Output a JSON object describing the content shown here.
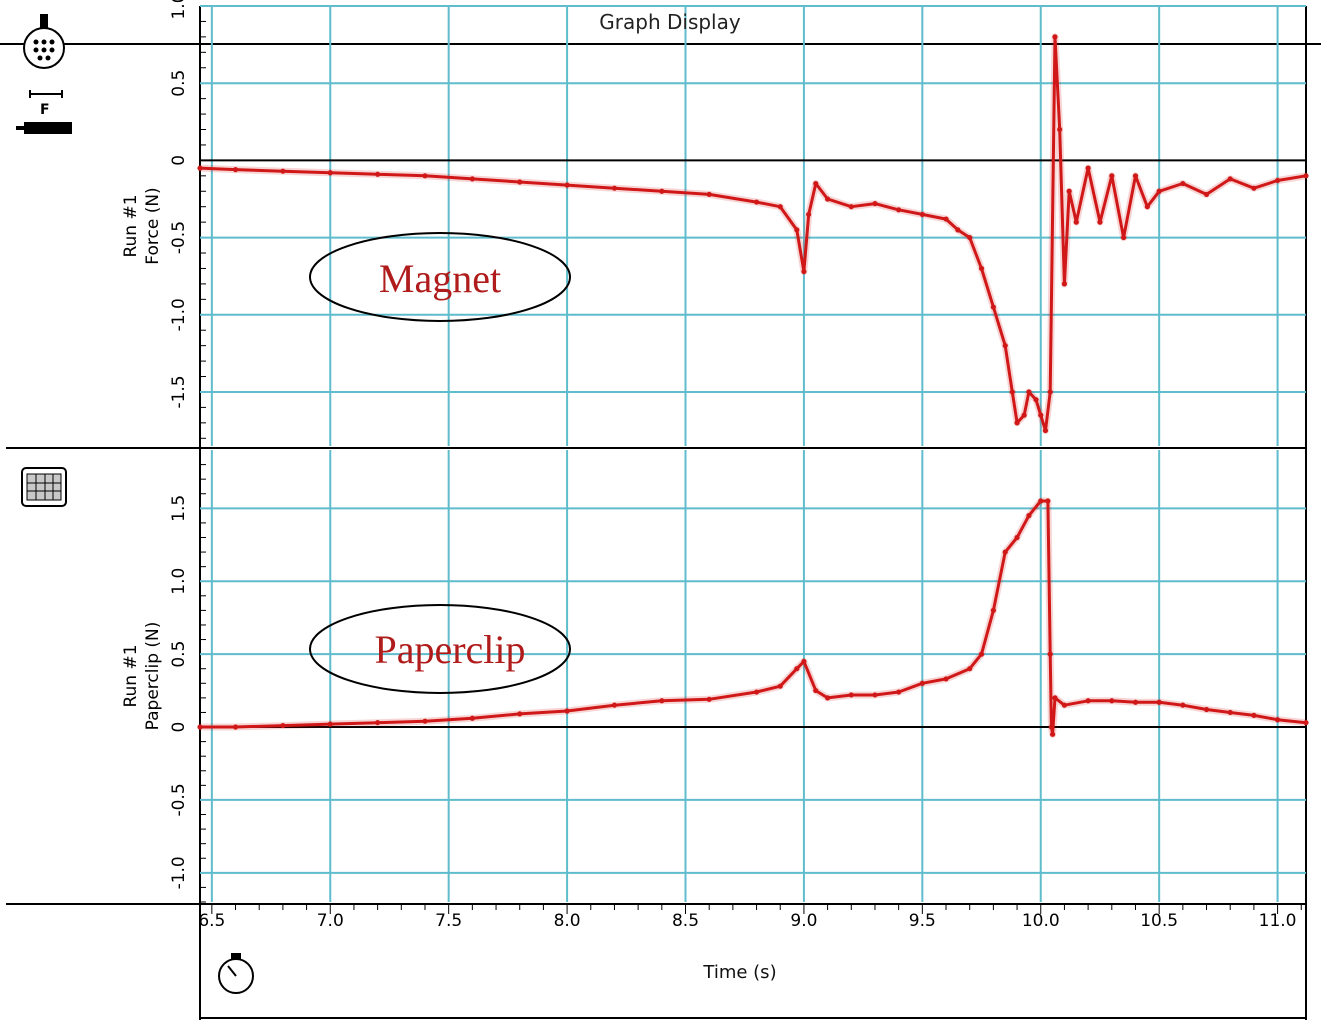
{
  "title": "Graph Display",
  "x_axis": {
    "label": "Time (s)",
    "min": 6.45,
    "max": 11.12,
    "ticks": [
      "6.5",
      "7.0",
      "7.5",
      "8.0",
      "8.5",
      "9.0",
      "9.5",
      "10.0",
      "10.5",
      "11.0"
    ]
  },
  "colors": {
    "grid": "#5fbccc",
    "trace": "#d01818",
    "axis": "#000000",
    "annotation": "#b01c1c"
  },
  "icons": {
    "top_sensor": "force-sensor-icon",
    "top_probe": "probe-icon",
    "bottom_sensor": "keypad-icon",
    "timer": "stopwatch-icon"
  },
  "chart_data": [
    {
      "type": "line",
      "ylabel_line1": "Run #1",
      "ylabel_line2": "Force (N)",
      "annotation": "Magnet",
      "ylim": [
        -1.85,
        1.0
      ],
      "y_ticks": [
        "1.0",
        "0.5",
        "0",
        "-0.5",
        "-1.0",
        "-1.5"
      ],
      "grid": true,
      "series": [
        {
          "x": [
            6.45,
            6.6,
            6.8,
            7.0,
            7.2,
            7.4,
            7.6,
            7.8,
            8.0,
            8.2,
            8.4,
            8.6,
            8.8,
            8.9,
            8.97,
            9.0,
            9.02,
            9.05,
            9.1,
            9.2,
            9.3,
            9.4,
            9.5,
            9.6,
            9.65,
            9.7,
            9.75,
            9.8,
            9.85,
            9.88,
            9.9,
            9.93,
            9.95,
            9.98,
            10.0,
            10.02,
            10.04,
            10.06,
            10.08,
            10.1,
            10.12,
            10.15,
            10.2,
            10.25,
            10.3,
            10.35,
            10.4,
            10.45,
            10.5,
            10.6,
            10.7,
            10.8,
            10.9,
            11.0,
            11.12
          ],
          "y": [
            -0.05,
            -0.06,
            -0.07,
            -0.08,
            -0.09,
            -0.1,
            -0.12,
            -0.14,
            -0.16,
            -0.18,
            -0.2,
            -0.22,
            -0.27,
            -0.3,
            -0.45,
            -0.72,
            -0.35,
            -0.15,
            -0.25,
            -0.3,
            -0.28,
            -0.32,
            -0.35,
            -0.38,
            -0.45,
            -0.5,
            -0.7,
            -0.95,
            -1.2,
            -1.5,
            -1.7,
            -1.65,
            -1.5,
            -1.55,
            -1.65,
            -1.75,
            -1.5,
            0.8,
            0.2,
            -0.8,
            -0.2,
            -0.4,
            -0.05,
            -0.4,
            -0.1,
            -0.5,
            -0.1,
            -0.3,
            -0.2,
            -0.15,
            -0.22,
            -0.12,
            -0.18,
            -0.13,
            -0.1
          ]
        }
      ]
    },
    {
      "type": "line",
      "ylabel_line1": "Run #1",
      "ylabel_line2": "Paperclip (N)",
      "annotation": "Paperclip",
      "ylim": [
        -1.2,
        1.9
      ],
      "y_ticks": [
        "1.5",
        "1.0",
        "0.5",
        "0",
        "-0.5",
        "-1.0"
      ],
      "grid": true,
      "series": [
        {
          "x": [
            6.45,
            6.6,
            6.8,
            7.0,
            7.2,
            7.4,
            7.6,
            7.8,
            8.0,
            8.2,
            8.4,
            8.6,
            8.8,
            8.9,
            8.97,
            9.0,
            9.05,
            9.1,
            9.2,
            9.3,
            9.4,
            9.5,
            9.6,
            9.7,
            9.75,
            9.8,
            9.85,
            9.9,
            9.95,
            10.0,
            10.03,
            10.04,
            10.045,
            10.05,
            10.06,
            10.1,
            10.2,
            10.3,
            10.4,
            10.5,
            10.6,
            10.7,
            10.8,
            10.9,
            11.0,
            11.12
          ],
          "y": [
            0.0,
            0.0,
            0.01,
            0.02,
            0.03,
            0.04,
            0.06,
            0.09,
            0.11,
            0.15,
            0.18,
            0.19,
            0.24,
            0.28,
            0.4,
            0.45,
            0.25,
            0.2,
            0.22,
            0.22,
            0.24,
            0.3,
            0.33,
            0.4,
            0.5,
            0.8,
            1.2,
            1.3,
            1.45,
            1.55,
            1.55,
            0.5,
            0.0,
            -0.05,
            0.2,
            0.15,
            0.18,
            0.18,
            0.17,
            0.17,
            0.15,
            0.12,
            0.1,
            0.08,
            0.05,
            0.03
          ]
        }
      ]
    }
  ]
}
